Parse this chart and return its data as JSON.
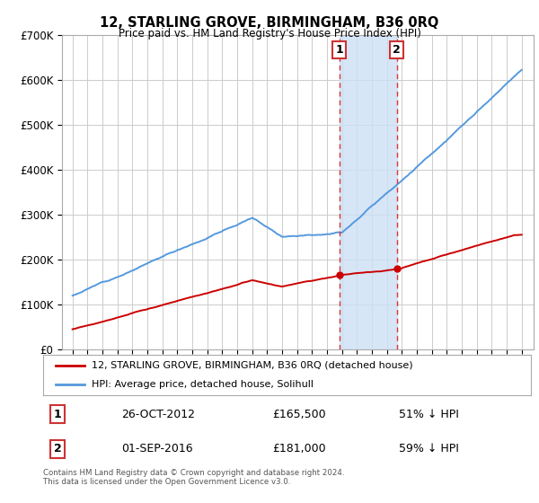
{
  "title": "12, STARLING GROVE, BIRMINGHAM, B36 0RQ",
  "subtitle": "Price paid vs. HM Land Registry's House Price Index (HPI)",
  "ylim": [
    0,
    700000
  ],
  "xlim_start": 1994.3,
  "xlim_end": 2025.8,
  "sale1_date": 2012.82,
  "sale1_price": 165500,
  "sale2_date": 2016.67,
  "sale2_price": 181000,
  "shade_color": "#cce0f5",
  "vline_color": "#dd3333",
  "red_line_color": "#cc0000",
  "blue_line_color": "#5599dd",
  "legend_red_label": "12, STARLING GROVE, BIRMINGHAM, B36 0RQ (detached house)",
  "legend_blue_label": "HPI: Average price, detached house, Solihull",
  "table_row1": [
    "1",
    "26-OCT-2012",
    "£165,500",
    "51% ↓ HPI"
  ],
  "table_row2": [
    "2",
    "01-SEP-2016",
    "£181,000",
    "59% ↓ HPI"
  ],
  "footnote": "Contains HM Land Registry data © Crown copyright and database right 2024.\nThis data is licensed under the Open Government Licence v3.0.",
  "background_color": "#ffffff",
  "grid_color": "#cccccc",
  "box_edge_color": "#cc3333"
}
